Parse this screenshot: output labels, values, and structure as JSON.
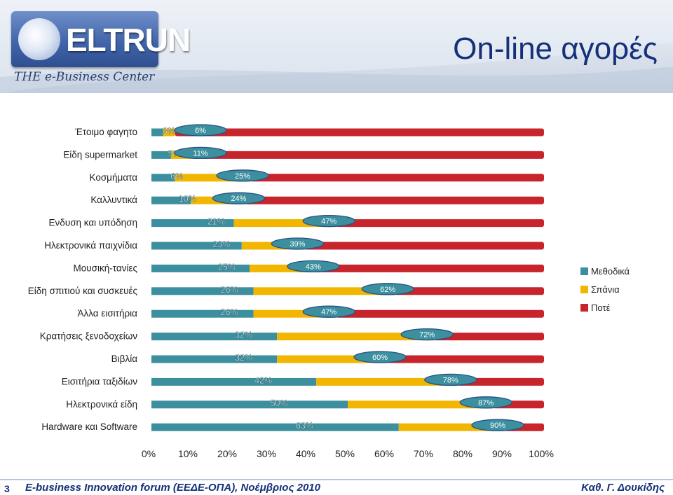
{
  "header": {
    "logo_text": "ELTRUN",
    "tagline": "THE e-Business Center",
    "title": "On-line αγορές"
  },
  "footer": {
    "page_number": "3",
    "event": "E-business Innovation forum (ΕΕΔΕ-ΟΠΑ), Νοέμβριος 2010",
    "author": "Καθ. Γ. Δουκίδης"
  },
  "colors": {
    "series": [
      "#3b8f9e",
      "#f2b600",
      "#c8242b"
    ]
  },
  "chart_data": {
    "type": "bar",
    "orientation": "horizontal",
    "stacked": true,
    "categories": [
      "Έτοιμο φαγητο",
      "Είδη supermarket",
      "Κοσμήματα",
      "Καλλυντικά",
      "Ενδυση και υπόδηση",
      "Ηλεκτρονικά παιχνίδια",
      "Μουσική-τανίες",
      "Είδη σπιτιού και συσκευές",
      "Άλλα εισιτήρια",
      "Κρατήσεις ξενοδοχείων",
      "Βιβλία",
      "Εισιτήρια ταξιδίων",
      "Ηλεκτρονικά είδη",
      "Hardware και Software"
    ],
    "series": [
      {
        "name": "Μεθοδικά",
        "values": [
          3,
          5,
          6,
          10,
          21,
          23,
          25,
          26,
          26,
          32,
          32,
          42,
          50,
          63
        ]
      },
      {
        "name": "Σπάνια",
        "values": [
          3,
          6,
          19,
          14,
          26,
          16,
          18,
          36,
          21,
          40,
          28,
          36,
          37,
          27
        ]
      },
      {
        "name": "Ποτέ",
        "values": [
          94,
          89,
          75,
          76,
          53,
          61,
          57,
          38,
          53,
          28,
          40,
          22,
          13,
          10
        ]
      }
    ],
    "bar_labels": {
      "methodical": [
        "3%",
        "5%",
        "6%",
        "10%",
        "21%",
        "23%",
        "25%",
        "26%",
        "26%",
        "32%",
        "32%",
        "42%",
        "50%",
        "63%"
      ],
      "cumulative": [
        "6%",
        "11%",
        "25%",
        "24%",
        "47%",
        "39%",
        "43%",
        "62%",
        "47%",
        "72%",
        "60%",
        "78%",
        "87%",
        "90%"
      ]
    },
    "x_ticks": [
      "0%",
      "10%",
      "20%",
      "30%",
      "40%",
      "50%",
      "60%",
      "70%",
      "80%",
      "90%",
      "100%"
    ],
    "xlim": [
      0,
      100
    ],
    "legend_position": "right",
    "grid": false
  }
}
